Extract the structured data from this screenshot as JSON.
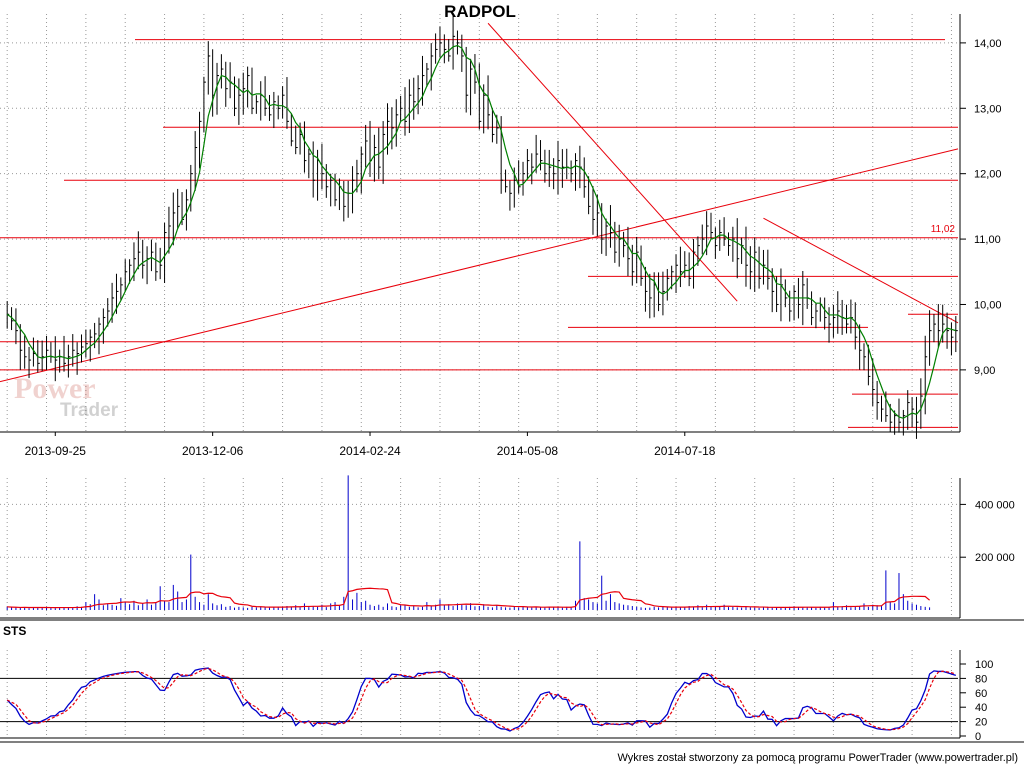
{
  "title": "RADPOL",
  "footer": "Wykres został stworzony za pomocą programu PowerTrader (www.powertrader.pl)",
  "sts_label": "STS",
  "logo": {
    "line1": "Power",
    "line2": "Trader"
  },
  "colors": {
    "price": "#000000",
    "ma": "#008000",
    "lines": "#e8000b",
    "volume": "#0000cc",
    "volume_ma": "#e8000b",
    "sts_k": "#0000cc",
    "sts_d": "#e8000b",
    "grid": "#999999"
  },
  "chart_data": [
    {
      "type": "line",
      "name": "price",
      "x_ticks": [
        "2013-09-25",
        "2013-12-06",
        "2014-02-24",
        "2014-05-08",
        "2014-07-18"
      ],
      "y_ticks": [
        "9,00",
        "10,00",
        "11,00",
        "12,00",
        "13,00",
        "14,00"
      ],
      "ylim": [
        8.05,
        14.35
      ],
      "price_label": "11,02",
      "close_values": [
        9.85,
        9.75,
        9.6,
        9.3,
        9.2,
        9.15,
        9.25,
        9.1,
        9.2,
        9.3,
        9.2,
        9.15,
        9.2,
        9.1,
        9.2,
        9.3,
        9.25,
        9.35,
        9.4,
        9.5,
        9.55,
        9.7,
        9.8,
        9.9,
        10.1,
        10.2,
        10.3,
        10.5,
        10.6,
        10.7,
        10.8,
        10.6,
        10.7,
        10.8,
        10.5,
        10.6,
        11.1,
        11.2,
        11.4,
        11.5,
        11.3,
        11.6,
        12.0,
        12.4,
        12.8,
        13.4,
        13.8,
        13.2,
        13.5,
        13.6,
        13.3,
        13.4,
        13.0,
        13.2,
        13.3,
        13.5,
        13.0,
        13.1,
        13.2,
        13.0,
        12.9,
        13.1,
        13.0,
        13.2,
        12.8,
        12.5,
        12.4,
        12.6,
        12.2,
        12.3,
        11.9,
        12.2,
        12.0,
        11.8,
        11.9,
        11.6,
        11.8,
        11.5,
        11.7,
        11.9,
        12.0,
        12.3,
        12.5,
        12.2,
        12.4,
        12.1,
        12.6,
        12.8,
        12.7,
        12.9,
        13.0,
        12.8,
        13.2,
        13.1,
        13.3,
        13.5,
        13.6,
        13.8,
        13.9,
        14.0,
        13.9,
        13.8,
        14.1,
        14.0,
        13.8,
        13.2,
        13.6,
        13.4,
        12.8,
        13.2,
        12.9,
        12.6,
        12.7,
        11.9,
        11.8,
        11.7,
        11.9,
        11.8,
        12.0,
        12.2,
        12.1,
        12.3,
        12.2,
        12.0,
        12.1,
        12.0,
        12.2,
        12.1,
        12.1,
        12.0,
        12.2,
        12.1,
        11.8,
        11.5,
        11.3,
        11.4,
        11.0,
        11.2,
        11.1,
        10.8,
        11.0,
        10.9,
        10.7,
        10.5,
        10.8,
        10.4,
        10.2,
        10.1,
        10.3,
        10.0,
        10.2,
        10.4,
        10.5,
        10.6,
        10.5,
        10.6,
        10.4,
        10.8,
        10.9,
        11.0,
        11.2,
        11.1,
        10.9,
        11.1,
        11.0,
        10.9,
        11.0,
        10.7,
        10.9,
        10.6,
        10.5,
        10.8,
        10.4,
        10.6,
        10.4,
        10.2,
        10.0,
        10.3,
        10.1,
        9.9,
        10.2,
        10.0,
        10.3,
        10.1,
        9.8,
        9.9,
        10.0,
        9.8,
        9.7,
        9.8,
        9.9,
        9.8,
        9.7,
        9.8,
        9.5,
        9.3,
        9.2,
        8.9,
        8.7,
        8.5,
        8.4,
        8.3,
        8.2,
        8.3,
        8.2,
        8.3,
        8.5,
        8.4,
        8.2,
        8.6,
        9.2,
        9.6,
        9.7,
        9.6,
        9.7,
        9.6,
        9.5,
        9.6
      ]
    },
    {
      "type": "bar",
      "name": "volume",
      "y_ticks": [
        "200 000",
        "400 000"
      ],
      "ylim": [
        0,
        500000
      ],
      "values": [
        12000,
        10000,
        9000,
        8000,
        11000,
        7000,
        9000,
        10000,
        8000,
        12000,
        9000,
        7000,
        11000,
        9000,
        10000,
        8000,
        14000,
        12000,
        30000,
        22000,
        60000,
        40000,
        18000,
        25000,
        20000,
        16000,
        45000,
        30000,
        22000,
        35000,
        18000,
        25000,
        40000,
        20000,
        28000,
        90000,
        35000,
        30000,
        95000,
        70000,
        30000,
        40000,
        210000,
        50000,
        30000,
        20000,
        60000,
        25000,
        18000,
        22000,
        12000,
        15000,
        9000,
        12000,
        10000,
        8000,
        12000,
        10000,
        14000,
        11000,
        9000,
        13000,
        12000,
        10000,
        15000,
        12000,
        18000,
        10000,
        25000,
        11000,
        14000,
        12000,
        20000,
        11000,
        25000,
        30000,
        18000,
        50000,
        510000,
        40000,
        65000,
        30000,
        35000,
        20000,
        15000,
        20000,
        12000,
        25000,
        14000,
        11000,
        18000,
        20000,
        12000,
        15000,
        10000,
        12000,
        30000,
        14000,
        20000,
        40000,
        18000,
        22000,
        15000,
        25000,
        20000,
        18000,
        26000,
        14000,
        15000,
        22000,
        12000,
        10000,
        18000,
        12000,
        10000,
        9000,
        12000,
        10000,
        14000,
        11000,
        9000,
        12000,
        10000,
        9000,
        12000,
        10000,
        11000,
        9000,
        12000,
        10000,
        35000,
        260000,
        45000,
        40000,
        30000,
        25000,
        130000,
        35000,
        60000,
        30000,
        25000,
        20000,
        18000,
        15000,
        12000,
        10000,
        8000,
        9000,
        12000,
        10000,
        14000,
        11000,
        9000,
        13000,
        12000,
        10000,
        15000,
        12000,
        18000,
        10000,
        20000,
        11000,
        14000,
        12000,
        20000,
        11000,
        12000,
        10000,
        9000,
        12000,
        10000,
        9000,
        8000,
        10000,
        12000,
        9000,
        11000,
        10000,
        8000,
        12000,
        14000,
        10000,
        9000,
        11000,
        10000,
        8000,
        12000,
        9000,
        10000,
        30000,
        12000,
        14000,
        18000,
        10000,
        12000,
        15000,
        25000,
        12000,
        20000,
        18000,
        15000,
        150000,
        30000,
        25000,
        140000,
        60000,
        35000,
        25000,
        20000,
        15000,
        12000,
        10000
      ]
    },
    {
      "type": "line",
      "name": "STS",
      "y_ticks": [
        "0",
        "20",
        "40",
        "60",
        "80",
        "100"
      ],
      "ylim": [
        0,
        100
      ],
      "levels": [
        20,
        80
      ]
    }
  ]
}
